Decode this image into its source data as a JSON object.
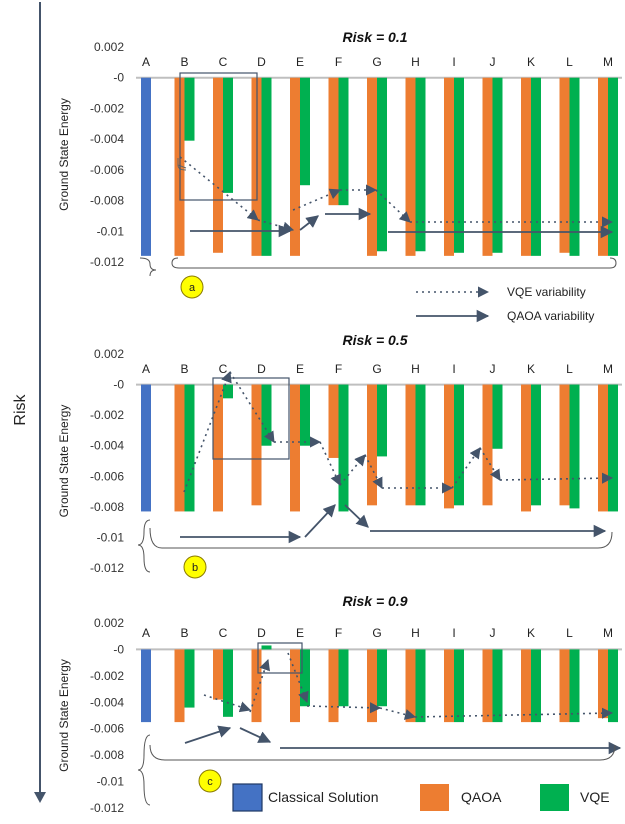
{
  "risk_axis_label": "Risk",
  "ylabel": "Ground State Energy",
  "annotation_legend": {
    "vqe": "VQE variability",
    "qaoa": "QAOA  variability"
  },
  "legend": {
    "classical": "Classical Solution",
    "qaoa": "QAOA",
    "vqe": "VQE"
  },
  "colors": {
    "classical": "#4472C4",
    "qaoa": "#ED7D31",
    "vqe": "#00B050",
    "arrow": "#44546A",
    "baseline": "#BFBFBF"
  },
  "chart_data": [
    {
      "type": "bar",
      "title": "Risk = 0.1",
      "marker": "a",
      "categories": [
        "A",
        "B",
        "C",
        "D",
        "E",
        "F",
        "G",
        "H",
        "I",
        "J",
        "K",
        "L",
        "M"
      ],
      "yticks": [
        "0.002",
        "-0",
        "-0.002",
        "-0.004",
        "-0.006",
        "-0.008",
        "-0.01",
        "-0.012"
      ],
      "ylim": [
        -0.012,
        0.002
      ],
      "series": [
        {
          "name": "Classical Solution",
          "values": [
            -0.0116,
            null,
            null,
            null,
            null,
            null,
            null,
            null,
            null,
            null,
            null,
            null,
            null
          ]
        },
        {
          "name": "QAOA",
          "values": [
            null,
            -0.0116,
            -0.0114,
            -0.0116,
            -0.0116,
            -0.0083,
            -0.0116,
            -0.0116,
            -0.0116,
            -0.0116,
            -0.0116,
            -0.0114,
            -0.0116
          ]
        },
        {
          "name": "VQE",
          "values": [
            null,
            -0.0041,
            -0.0075,
            -0.0116,
            -0.007,
            -0.0083,
            -0.0113,
            -0.0113,
            -0.0114,
            -0.0114,
            -0.0116,
            -0.0116,
            -0.0116
          ]
        }
      ]
    },
    {
      "type": "bar",
      "title": "Risk = 0.5",
      "marker": "b",
      "categories": [
        "A",
        "B",
        "C",
        "D",
        "E",
        "F",
        "G",
        "H",
        "I",
        "J",
        "K",
        "L",
        "M"
      ],
      "yticks": [
        "0.002",
        "-0",
        "-0.002",
        "-0.004",
        "-0.006",
        "-0.008",
        "-0.01",
        "-0.012"
      ],
      "ylim": [
        -0.012,
        0.002
      ],
      "series": [
        {
          "name": "Classical Solution",
          "values": [
            -0.0083,
            null,
            null,
            null,
            null,
            null,
            null,
            null,
            null,
            null,
            null,
            null,
            null
          ]
        },
        {
          "name": "QAOA",
          "values": [
            null,
            -0.0083,
            -0.0083,
            -0.0079,
            -0.0083,
            -0.0048,
            -0.0079,
            -0.0079,
            -0.0081,
            -0.0079,
            -0.0083,
            -0.0079,
            -0.0083
          ]
        },
        {
          "name": "VQE",
          "values": [
            null,
            -0.0083,
            -0.0009,
            -0.004,
            -0.004,
            -0.0083,
            -0.0047,
            -0.0079,
            -0.0079,
            -0.0042,
            -0.0079,
            -0.0081,
            -0.0083
          ]
        }
      ]
    },
    {
      "type": "bar",
      "title": "Risk = 0.9",
      "marker": "c",
      "categories": [
        "A",
        "B",
        "C",
        "D",
        "E",
        "F",
        "G",
        "H",
        "I",
        "J",
        "K",
        "L",
        "M"
      ],
      "yticks": [
        "0.002",
        "-0",
        "-0.002",
        "-0.004",
        "-0.006",
        "-0.008",
        "-0.01",
        "-0.012"
      ],
      "ylim": [
        -0.012,
        0.002
      ],
      "series": [
        {
          "name": "Classical Solution",
          "values": [
            -0.0055,
            null,
            null,
            null,
            null,
            null,
            null,
            null,
            null,
            null,
            null,
            null,
            null
          ]
        },
        {
          "name": "QAOA",
          "values": [
            null,
            -0.0055,
            -0.0038,
            -0.0055,
            -0.0055,
            -0.0055,
            -0.0055,
            -0.0055,
            -0.0055,
            -0.0055,
            -0.0055,
            -0.0055,
            -0.0052
          ]
        },
        {
          "name": "VQE",
          "values": [
            null,
            -0.0044,
            -0.0051,
            0.0003,
            -0.0043,
            -0.0043,
            -0.0043,
            -0.0055,
            -0.0055,
            -0.0055,
            -0.0055,
            -0.0055,
            -0.0055
          ]
        }
      ]
    }
  ]
}
